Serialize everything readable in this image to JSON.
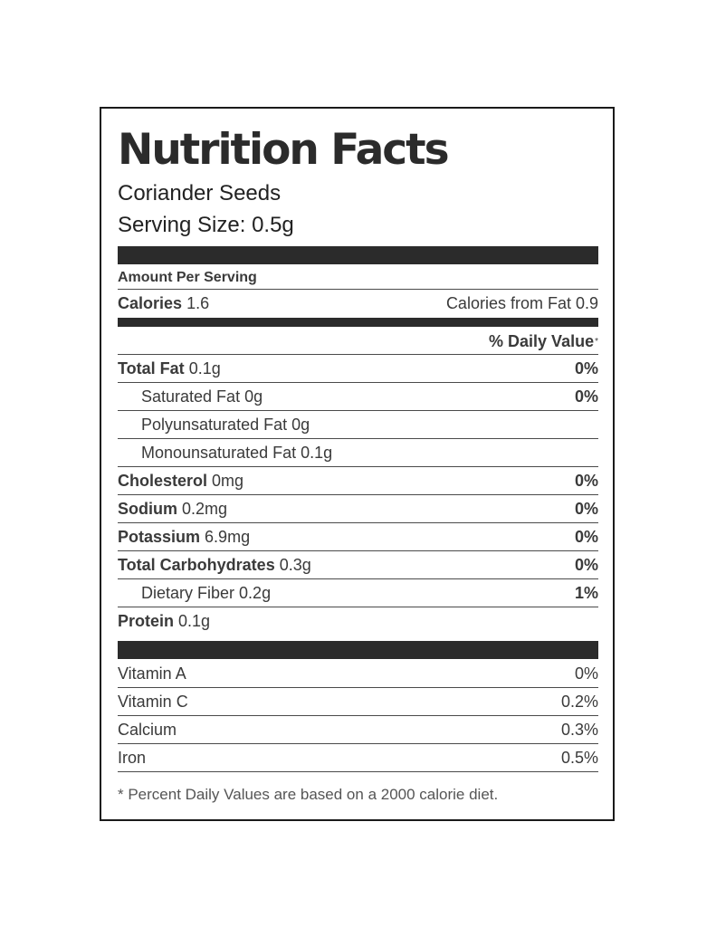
{
  "title": "Nutrition Facts",
  "food_name": "Coriander Seeds",
  "serving_size": "Serving Size: 0.5g",
  "amount_per_serving": "Amount Per Serving",
  "calories": {
    "label": "Calories",
    "value": "1.6",
    "from_fat": "Calories from Fat 0.9"
  },
  "daily_value_header": "% Daily Value",
  "daily_value_mark": "*",
  "nutrients": [
    {
      "label": "Total Fat",
      "value": "0.1g",
      "dv": "0%"
    },
    {
      "label": "Saturated Fat",
      "value": "0g",
      "dv": "0%"
    },
    {
      "label": "Polyunsaturated Fat",
      "value": "0g",
      "dv": ""
    },
    {
      "label": "Monounsaturated Fat",
      "value": "0.1g",
      "dv": ""
    },
    {
      "label": "Cholesterol",
      "value": "0mg",
      "dv": "0%"
    },
    {
      "label": "Sodium",
      "value": "0.2mg",
      "dv": "0%"
    },
    {
      "label": "Potassium",
      "value": "6.9mg",
      "dv": "0%"
    },
    {
      "label": "Total Carbohydrates",
      "value": "0.3g",
      "dv": "0%"
    },
    {
      "label": "Dietary Fiber",
      "value": "0.2g",
      "dv": "1%"
    },
    {
      "label": "Protein",
      "value": "0.1g",
      "dv": ""
    }
  ],
  "vitamins": [
    {
      "label": "Vitamin A",
      "dv": "0%"
    },
    {
      "label": "Vitamin C",
      "dv": "0.2%"
    },
    {
      "label": "Calcium",
      "dv": "0.3%"
    },
    {
      "label": "Iron",
      "dv": "0.5%"
    }
  ],
  "footnote": "* Percent Daily Values are based on a 2000 calorie diet."
}
